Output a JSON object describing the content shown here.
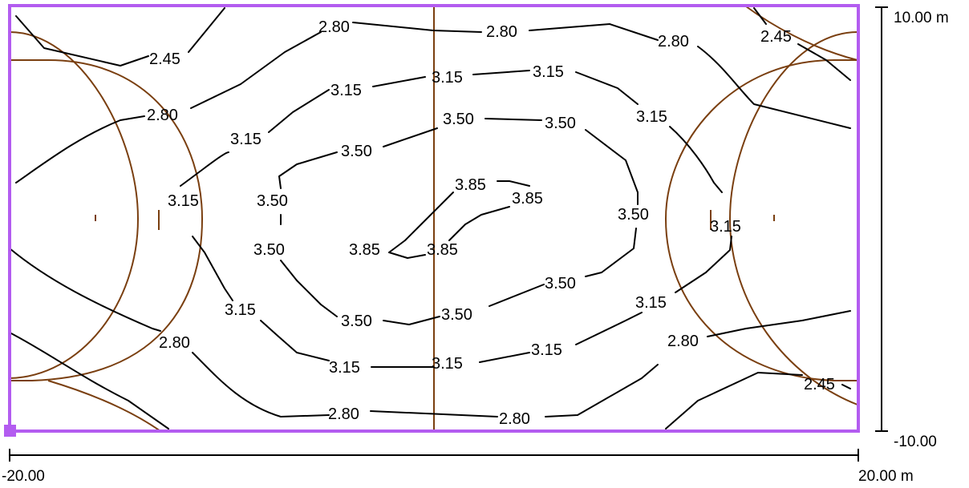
{
  "axes": {
    "x_start_label": "-20.00",
    "x_end_label": "20.00 m",
    "y_top_label": "10.00 m",
    "y_bottom_label": "-10.00"
  },
  "contour_labels": {
    "l280_top_a": "2.80",
    "l280_top_b": "2.80",
    "l280_top_c": "2.80",
    "l245_tl": "2.45",
    "l245_tr": "2.45",
    "l280_left": "2.80",
    "l315_top_a": "3.15",
    "l315_top_b": "3.15",
    "l315_top_c": "3.15",
    "l315_right_top": "3.15",
    "l315_left_top": "3.15",
    "l350_top_a": "3.50",
    "l350_top_b": "3.50",
    "l350_left_upper": "3.50",
    "l350_left_mid": "3.50",
    "l385_top": "3.85",
    "l385_right": "3.85",
    "l315_left_mid": "3.15",
    "l350_right": "3.50",
    "l315_right_mid": "3.15",
    "l385_bl": "3.85",
    "l385_br": "3.85",
    "l350_bottom_right": "3.50",
    "l315_left_low": "3.15",
    "l350_bottom_a": "3.50",
    "l350_bottom_b": "3.50",
    "l315_right_low": "3.15",
    "l280_left_low": "2.80",
    "l315_bottom_a": "3.15",
    "l315_bottom_b": "3.15",
    "l315_bottom_c": "3.15",
    "l280_right_low": "2.80",
    "l245_br": "2.45",
    "l280_bottom_a": "2.80",
    "l280_bottom_b": "2.80"
  },
  "colors": {
    "border": "#b35cf0",
    "court_lines": "#7a3f10",
    "contours": "#000000"
  }
}
